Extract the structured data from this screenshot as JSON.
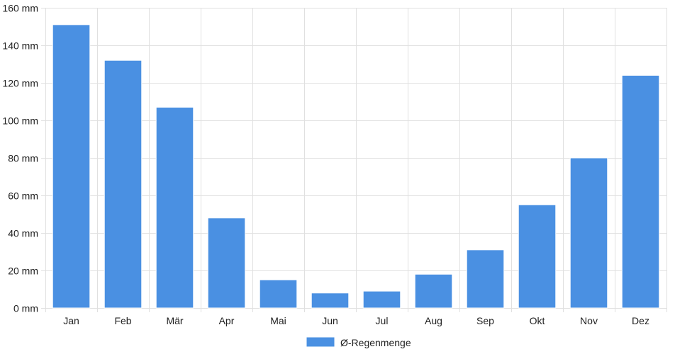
{
  "chart_data": {
    "type": "bar",
    "categories": [
      "Jan",
      "Feb",
      "Mär",
      "Apr",
      "Mai",
      "Jun",
      "Jul",
      "Aug",
      "Sep",
      "Okt",
      "Nov",
      "Dez"
    ],
    "series": [
      {
        "name": "Ø-Regenmenge",
        "values": [
          151,
          132,
          107,
          48,
          15,
          8,
          9,
          18,
          31,
          55,
          80,
          124
        ],
        "color": "#4a90e2"
      }
    ],
    "title": "",
    "xlabel": "",
    "ylabel": "",
    "ylim": [
      0,
      160
    ],
    "y_ticks": [
      0,
      20,
      40,
      60,
      80,
      100,
      120,
      140,
      160
    ],
    "y_tick_suffix": " mm",
    "grid": true,
    "legend_position": "bottom-center",
    "colors": {
      "bar": "#4a90e2",
      "grid": "#e0e0e0",
      "text": "#222222"
    }
  }
}
